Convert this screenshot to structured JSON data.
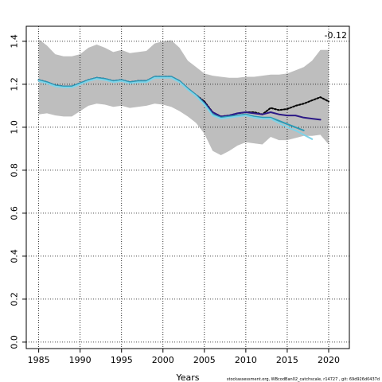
{
  "chart_data": {
    "type": "line",
    "title": "",
    "xlabel": "Years",
    "ylabel": "",
    "xlim": [
      1983.5,
      2022.5
    ],
    "ylim": [
      -0.03,
      1.47
    ],
    "grid": true,
    "x_ticks": [
      "1985",
      "1990",
      "1995",
      "2000",
      "2005",
      "2010",
      "2015",
      "2020"
    ],
    "y_ticks": [
      "0.0",
      "0.2",
      "0.4",
      "0.6",
      "0.8",
      "1.0",
      "1.2",
      "1.4"
    ],
    "annotation": "-0.12",
    "footer": "stockassessment.org, WBcodBan02_catchscale, r14727 , git: 69d926d0437d",
    "confidence_band": {
      "color": "#bebebe",
      "x": [
        1985,
        1986,
        1987,
        1988,
        1989,
        1990,
        1991,
        1992,
        1993,
        1994,
        1995,
        1996,
        1997,
        1998,
        1999,
        2000,
        2001,
        2002,
        2003,
        2004,
        2005,
        2006,
        2007,
        2008,
        2009,
        2010,
        2011,
        2012,
        2013,
        2014,
        2015,
        2016,
        2017,
        2018,
        2019,
        2020
      ],
      "upper": [
        1.41,
        1.38,
        1.34,
        1.33,
        1.33,
        1.34,
        1.37,
        1.385,
        1.37,
        1.35,
        1.36,
        1.345,
        1.35,
        1.355,
        1.39,
        1.4,
        1.405,
        1.37,
        1.31,
        1.28,
        1.25,
        1.24,
        1.235,
        1.23,
        1.23,
        1.235,
        1.235,
        1.24,
        1.245,
        1.245,
        1.25,
        1.265,
        1.28,
        1.31,
        1.36,
        1.36
      ],
      "lower": [
        1.06,
        1.065,
        1.055,
        1.05,
        1.05,
        1.075,
        1.1,
        1.11,
        1.105,
        1.095,
        1.1,
        1.09,
        1.095,
        1.1,
        1.11,
        1.105,
        1.095,
        1.075,
        1.05,
        1.02,
        0.97,
        0.89,
        0.87,
        0.89,
        0.915,
        0.93,
        0.925,
        0.92,
        0.955,
        0.94,
        0.94,
        0.95,
        0.96,
        0.96,
        0.965,
        0.92
      ]
    },
    "series": [
      {
        "color": "#000000",
        "dash": "2,2",
        "x": [
          1985,
          1986,
          1987,
          1988,
          1989,
          1990,
          1991,
          1992,
          1993,
          1994,
          1995,
          1996,
          1997,
          1998,
          1999,
          2000,
          2001,
          2002,
          2003,
          2004,
          2005,
          2006,
          2007,
          2008,
          2009,
          2010,
          2011,
          2012,
          2013,
          2014,
          2015,
          2016,
          2017,
          2018,
          2019,
          2020
        ],
        "y": [
          1.22,
          1.21,
          1.195,
          1.19,
          1.19,
          1.205,
          1.22,
          1.23,
          1.225,
          1.215,
          1.22,
          1.21,
          1.215,
          1.215,
          1.235,
          1.235,
          1.235,
          1.215,
          1.18,
          1.15,
          1.12,
          1.07,
          1.05,
          1.055,
          1.065,
          1.07,
          1.07,
          1.06,
          1.09,
          1.08,
          1.085,
          1.1,
          1.11,
          1.125,
          1.14,
          1.12
        ]
      },
      {
        "color": "#2c1a86",
        "dash": "",
        "x": [
          1985,
          1986,
          1987,
          1988,
          1989,
          1990,
          1991,
          1992,
          1993,
          1994,
          1995,
          1996,
          1997,
          1998,
          1999,
          2000,
          2001,
          2002,
          2003,
          2004,
          2005,
          2006,
          2007,
          2008,
          2009,
          2010,
          2011,
          2012,
          2013,
          2014,
          2015,
          2016,
          2017,
          2018,
          2019
        ],
        "y": [
          1.22,
          1.21,
          1.195,
          1.19,
          1.19,
          1.205,
          1.22,
          1.23,
          1.225,
          1.215,
          1.22,
          1.21,
          1.215,
          1.215,
          1.235,
          1.235,
          1.235,
          1.215,
          1.18,
          1.15,
          1.115,
          1.07,
          1.05,
          1.055,
          1.065,
          1.07,
          1.065,
          1.06,
          1.07,
          1.06,
          1.055,
          1.055,
          1.045,
          1.04,
          1.035
        ]
      },
      {
        "color": "#2a9ab5",
        "dash": "",
        "x": [
          1985,
          1986,
          1987,
          1988,
          1989,
          1990,
          1991,
          1992,
          1993,
          1994,
          1995,
          1996,
          1997,
          1998,
          1999,
          2000,
          2001,
          2002,
          2003,
          2004,
          2005,
          2006,
          2007,
          2008,
          2009,
          2010,
          2011,
          2012,
          2013,
          2014,
          2015,
          2016,
          2017
        ],
        "y": [
          1.22,
          1.21,
          1.195,
          1.19,
          1.19,
          1.205,
          1.22,
          1.23,
          1.225,
          1.215,
          1.22,
          1.21,
          1.215,
          1.215,
          1.235,
          1.235,
          1.235,
          1.215,
          1.18,
          1.15,
          1.11,
          1.06,
          1.045,
          1.05,
          1.055,
          1.06,
          1.05,
          1.045,
          1.045,
          1.03,
          1.015,
          1.0,
          0.985
        ]
      },
      {
        "color": "#7fd3e8",
        "dash": "",
        "x": [
          1985,
          1986,
          1987,
          1988,
          1989,
          1990,
          1991,
          1992,
          1993,
          1994,
          1995,
          1996,
          1997,
          1998,
          1999,
          2000,
          2001,
          2002,
          2003,
          2004,
          2005,
          2006,
          2007,
          2008,
          2009,
          2010,
          2011,
          2012,
          2013,
          2014,
          2015,
          2016,
          2017,
          2018
        ],
        "y": [
          1.215,
          1.205,
          1.19,
          1.185,
          1.185,
          1.2,
          1.215,
          1.225,
          1.22,
          1.21,
          1.215,
          1.205,
          1.21,
          1.21,
          1.23,
          1.23,
          1.23,
          1.21,
          1.175,
          1.145,
          1.105,
          1.055,
          1.04,
          1.045,
          1.05,
          1.055,
          1.045,
          1.04,
          1.04,
          1.02,
          1.0,
          0.985,
          0.965,
          0.945
        ]
      }
    ]
  }
}
